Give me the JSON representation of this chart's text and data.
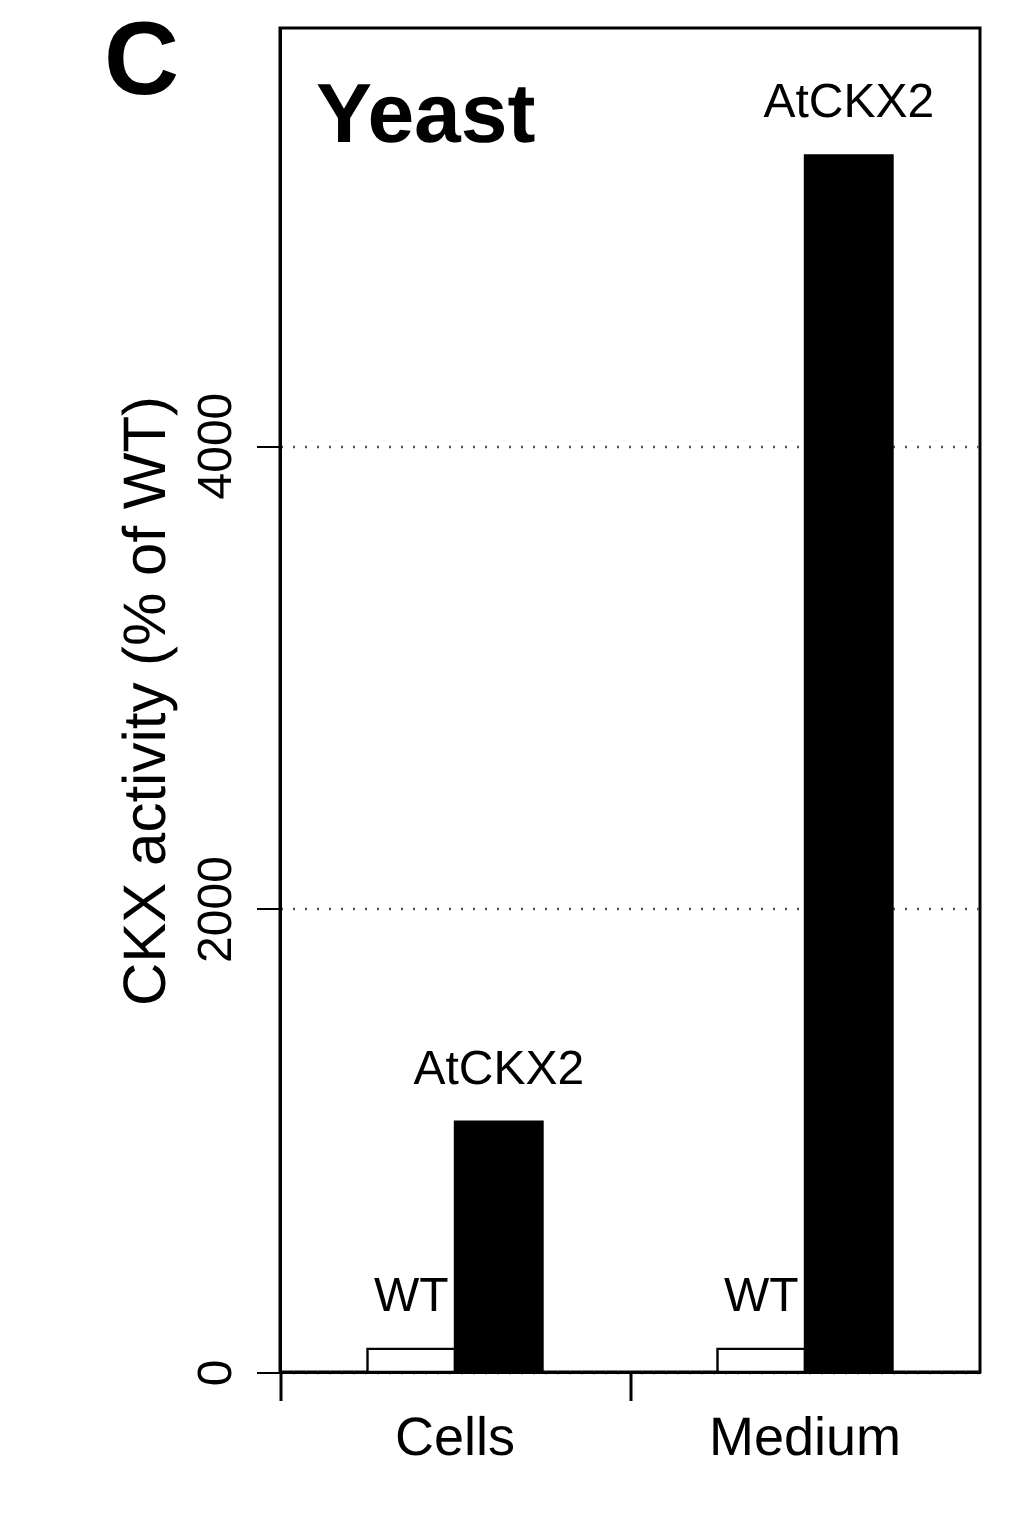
{
  "chart_data": {
    "type": "bar",
    "title": "Yeast",
    "ylabel": "CKX activity (% of WT)",
    "annotations": [
      "C"
    ],
    "categories": [
      "Cells",
      "Medium"
    ],
    "series": [
      {
        "name": "WT",
        "color": "#ffffff",
        "values": [
          100,
          100
        ]
      },
      {
        "name": "AtCKX2",
        "color": "#000000",
        "values": [
          1080,
          5250
        ]
      }
    ],
    "ylim": [
      0,
      5800
    ],
    "yticks": [
      0,
      2000,
      4000
    ],
    "grid": "y",
    "line_style": "dotted",
    "legend": false
  }
}
